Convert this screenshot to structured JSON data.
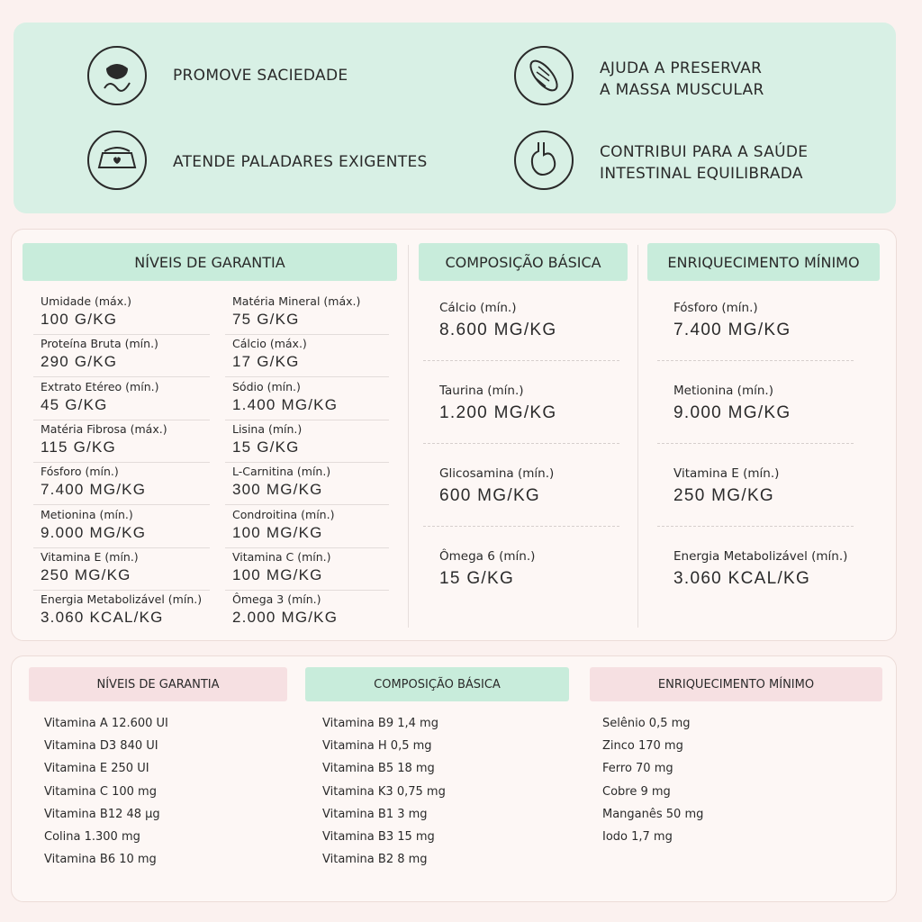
{
  "benefits": [
    {
      "lines": [
        "PROMOVE SACIEDADE"
      ]
    },
    {
      "lines": [
        "AJUDA A PRESERVAR",
        "A MASSA MUSCULAR"
      ]
    },
    {
      "lines": [
        "ATENDE PALADARES EXIGENTES"
      ]
    },
    {
      "lines": [
        "CONTRIBUI PARA A SAÚDE",
        "INTESTINAL EQUILIBRADA"
      ]
    }
  ],
  "guarantee": {
    "title": "NÍVEIS DE GARANTIA",
    "left": [
      {
        "label": "Umidade (máx.)",
        "value": "100 G/KG"
      },
      {
        "label": "Proteína Bruta (mín.)",
        "value": "290 G/KG"
      },
      {
        "label": "Extrato Etéreo (mín.)",
        "value": "45 G/KG"
      },
      {
        "label": "Matéria Fibrosa (máx.)",
        "value": "115 G/KG"
      },
      {
        "label": "Fósforo (mín.)",
        "value": "7.400 MG/KG"
      },
      {
        "label": "Metionina (mín.)",
        "value": "9.000 MG/KG"
      },
      {
        "label": "Vitamina E (mín.)",
        "value": "250 MG/KG"
      },
      {
        "label": "Energia Metabolizável (mín.)",
        "value": "3.060 KCAL/KG"
      }
    ],
    "right": [
      {
        "label": "Matéria Mineral (máx.)",
        "value": "75 G/KG"
      },
      {
        "label": "Cálcio (máx.)",
        "value": "17 G/KG"
      },
      {
        "label": "Sódio (mín.)",
        "value": "1.400 MG/KG"
      },
      {
        "label": "Lisina (mín.)",
        "value": "15 G/KG"
      },
      {
        "label": "L-Carnitina (mín.)",
        "value": "300 MG/KG"
      },
      {
        "label": "Condroitina (mín.)",
        "value": "100 MG/KG"
      },
      {
        "label": "Vitamina C (mín.)",
        "value": "100 MG/KG"
      },
      {
        "label": "Ômega 3 (mín.)",
        "value": "2.000 MG/KG"
      }
    ]
  },
  "composition": {
    "title": "COMPOSIÇÃO BÁSICA",
    "items": [
      {
        "label": "Cálcio (mín.)",
        "value": "8.600 MG/KG"
      },
      {
        "label": "Taurina (mín.)",
        "value": "1.200 MG/KG"
      },
      {
        "label": "Glicosamina (mín.)",
        "value": "600 MG/KG"
      },
      {
        "label": "Ômega 6 (mín.)",
        "value": "15 G/KG"
      }
    ]
  },
  "enrichment": {
    "title": "ENRIQUECIMENTO MÍNIMO",
    "items": [
      {
        "label": "Fósforo (mín.)",
        "value": "7.400 MG/KG"
      },
      {
        "label": "Metionina (mín.)",
        "value": "9.000 MG/KG"
      },
      {
        "label": "Vitamina E (mín.)",
        "value": "250 MG/KG"
      },
      {
        "label": "Energia Metabolizável (mín.)",
        "value": "3.060 KCAL/KG"
      }
    ]
  },
  "supplements": [
    {
      "title": "NÍVEIS DE GARANTIA",
      "items": [
        "Vitamina A 12.600 UI",
        "Vitamina D3 840 UI",
        "Vitamina E 250 UI",
        "Vitamina C 100 mg",
        "Vitamina B12 48 µg",
        "Colina 1.300 mg",
        "Vitamina B6 10 mg"
      ]
    },
    {
      "title": "COMPOSIÇÃO BÁSICA",
      "items": [
        "Vitamina B9 1,4 mg",
        "Vitamina H 0,5 mg",
        "Vitamina B5 18 mg",
        "Vitamina K3 0,75 mg",
        "Vitamina B1 3 mg",
        "Vitamina B3 15 mg",
        "Vitamina B2 8 mg"
      ]
    },
    {
      "title": "ENRIQUECIMENTO MÍNIMO",
      "items": [
        "Selênio 0,5 mg",
        "Zinco 170 mg",
        "Ferro 70 mg",
        "Cobre 9 mg",
        "Manganês 50 mg",
        "Iodo 1,7 mg"
      ]
    }
  ]
}
